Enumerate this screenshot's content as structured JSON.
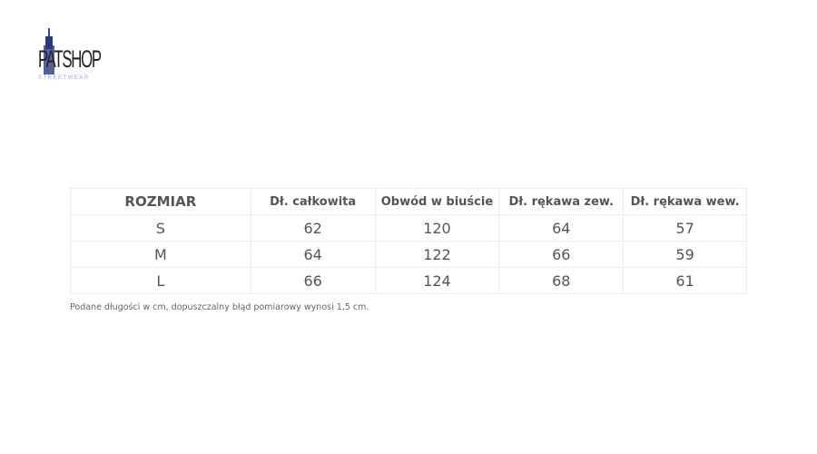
{
  "logo": {
    "text": "PATSHOP",
    "sub": "STREETWEAR"
  },
  "table": {
    "headers": [
      "ROZMIAR",
      "Dł. całkowita",
      "Obwód w biuście",
      "Dł. rękawa zew.",
      "Dł. rękawa wew."
    ],
    "rows": [
      [
        "S",
        "62",
        "120",
        "64",
        "57"
      ],
      [
        "M",
        "64",
        "122",
        "66",
        "59"
      ],
      [
        "L",
        "66",
        "124",
        "68",
        "61"
      ]
    ]
  },
  "note": "Podane długości w cm, dopuszczalny błąd pomiarowy wynosi 1,5 cm."
}
